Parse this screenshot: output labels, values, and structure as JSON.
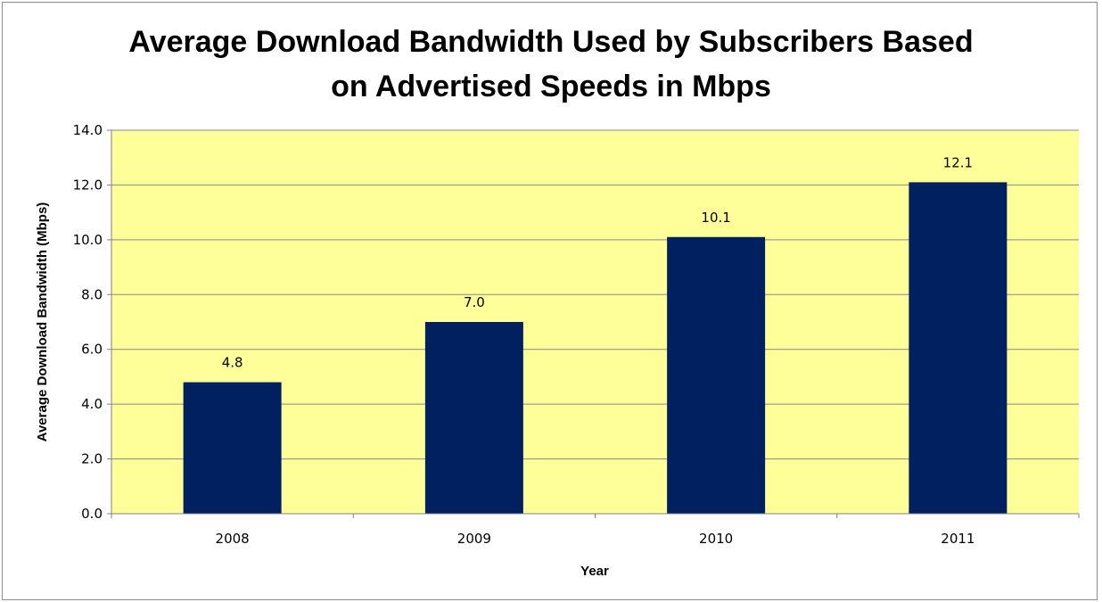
{
  "chart_data": {
    "type": "bar",
    "title": [
      "Average Download Bandwidth Used by Subscribers Based",
      "on Advertised Speeds in Mbps"
    ],
    "xlabel": "Year",
    "ylabel": "Average Download Bandwidth (Mbps)",
    "categories": [
      "2008",
      "2009",
      "2010",
      "2011"
    ],
    "values": [
      4.8,
      7.0,
      10.1,
      12.1
    ],
    "value_labels": [
      "4.8",
      "7.0",
      "10.1",
      "12.1"
    ],
    "ylim": [
      0,
      14
    ],
    "yticks": [
      "0.0",
      "2.0",
      "4.0",
      "6.0",
      "8.0",
      "10.0",
      "12.0",
      "14.0"
    ],
    "grid": true,
    "legend": "none",
    "colors": {
      "bar": "#002060",
      "plot_background": "#ffff99",
      "gridline": "#888888"
    }
  }
}
